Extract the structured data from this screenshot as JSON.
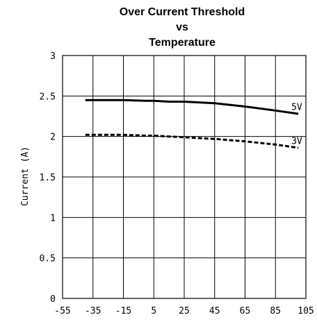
{
  "chart_data": {
    "type": "line",
    "title": [
      "Over Current Threshold",
      "vs",
      "Temperature"
    ],
    "xlabel": "",
    "ylabel": "Current (A)",
    "xlim": [
      -55,
      105
    ],
    "ylim": [
      0,
      3
    ],
    "x_ticks": [
      "-55",
      "-35",
      "-15",
      "5",
      "25",
      "45",
      "65",
      "85",
      "105"
    ],
    "y_ticks": [
      "0",
      "0.5",
      "1",
      "1.5",
      "2",
      "2.5",
      "3"
    ],
    "grid": true,
    "series": [
      {
        "name": "5V",
        "style": "solid",
        "x": [
          -40,
          -25,
          -15,
          0,
          5,
          15,
          25,
          45,
          65,
          85,
          100
        ],
        "y": [
          2.45,
          2.45,
          2.45,
          2.44,
          2.44,
          2.43,
          2.43,
          2.41,
          2.37,
          2.32,
          2.28
        ]
      },
      {
        "name": "3V",
        "style": "dashed",
        "x": [
          -40,
          -25,
          -15,
          0,
          5,
          15,
          25,
          45,
          65,
          85,
          100
        ],
        "y": [
          2.02,
          2.02,
          2.02,
          2.01,
          2.01,
          2.0,
          1.99,
          1.97,
          1.94,
          1.9,
          1.86
        ]
      }
    ]
  }
}
